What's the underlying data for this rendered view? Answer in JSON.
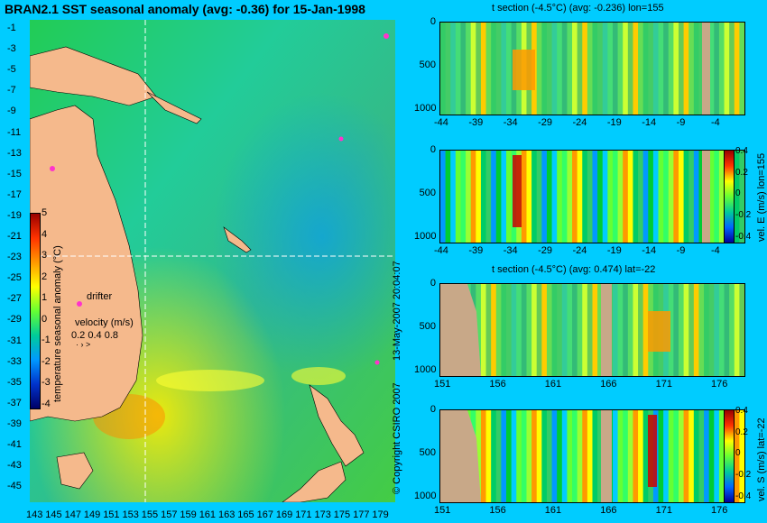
{
  "map": {
    "title": "BRAN2.1 SST seasonal anomaly (avg: -0.36) for 15-Jan-1998",
    "lat_ticks": [
      "-1",
      "-3",
      "-5",
      "-7",
      "-9",
      "-11",
      "-13",
      "-15",
      "-17",
      "-19",
      "-21",
      "-23",
      "-25",
      "-27",
      "-29",
      "-31",
      "-33",
      "-35",
      "-37",
      "-39",
      "-41",
      "-43",
      "-45"
    ],
    "lon_ticks": [
      "143",
      "145",
      "147",
      "149",
      "151",
      "153",
      "155",
      "157",
      "159",
      "161",
      "163",
      "165",
      "167",
      "169",
      "171",
      "173",
      "175",
      "177",
      "179"
    ],
    "colorbar_label": "temperature seasonal anomaly (°C)",
    "colorbar_ticks": [
      "5",
      "4",
      "3",
      "2",
      "1",
      "0",
      "-1",
      "-2",
      "-3",
      "-4"
    ],
    "drifter_label": "drifter",
    "velocity_label": "velocity (m/s)",
    "velocity_ticks": "0.2 0.4 0.8",
    "crosshair_lon": 155,
    "crosshair_lat": -22,
    "colors": {
      "land": "#f5b98c",
      "ocean": "#00ccff",
      "crosshair": "#ffffff",
      "drifter": "#ff33cc"
    }
  },
  "side_label": "13-May-2007 20:04:07",
  "copyright": "© Copyright CSIRO 2007",
  "panels": [
    {
      "title": "t section (-4.5°C) (avg: -0.236) lon=155",
      "x_ticks": [
        "-44",
        "-39",
        "-34",
        "-29",
        "-24",
        "-19",
        "-14",
        "-9",
        "-4"
      ],
      "y_ticks": [
        "0",
        "500",
        "1000"
      ],
      "colorbar": false
    },
    {
      "title": "",
      "x_ticks": [
        "-44",
        "-39",
        "-34",
        "-29",
        "-24",
        "-19",
        "-14",
        "-9",
        "-4"
      ],
      "y_ticks": [
        "0",
        "500",
        "1000"
      ],
      "colorbar": true,
      "colorbar_label": "vel. E (m/s) lon=155",
      "colorbar_ticks": [
        "0.4",
        "0.2",
        "0",
        "-0.2",
        "-0.4"
      ]
    },
    {
      "title": "t section (-4.5°C) (avg: 0.474) lat=-22",
      "x_ticks": [
        "151",
        "156",
        "161",
        "166",
        "171",
        "176"
      ],
      "y_ticks": [
        "0",
        "500",
        "1000"
      ],
      "colorbar": false
    },
    {
      "title": "",
      "x_ticks": [
        "151",
        "156",
        "161",
        "166",
        "171",
        "176"
      ],
      "y_ticks": [
        "0",
        "500",
        "1000"
      ],
      "colorbar": true,
      "colorbar_label": "vel. S (m/s) lat=-22",
      "colorbar_ticks": [
        "0.4",
        "0.2",
        "0",
        "-0.2",
        "-0.4"
      ]
    }
  ]
}
